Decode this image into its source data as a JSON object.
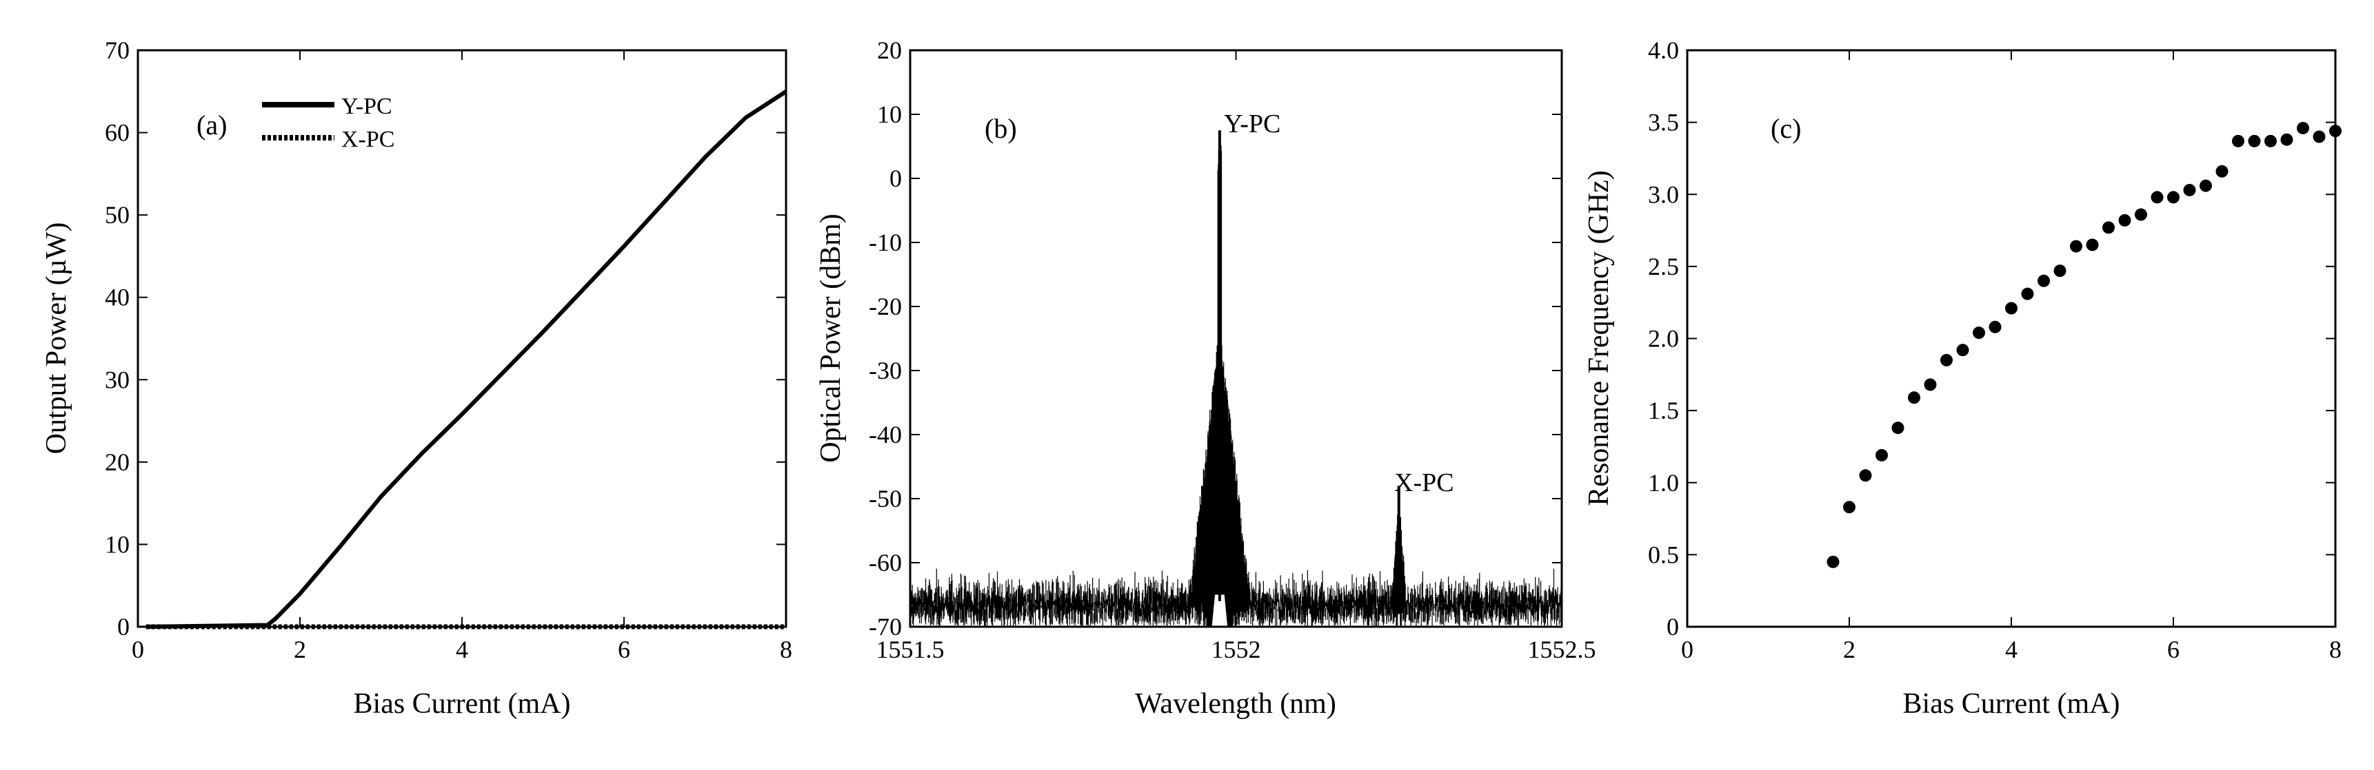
{
  "chart_data": [
    {
      "id": "a",
      "type": "line",
      "panel_label": "(a)",
      "xlabel": "Bias Current (mA)",
      "ylabel": "Output Power (µW)",
      "xlim": [
        0,
        8
      ],
      "ylim": [
        0,
        70
      ],
      "xticks": [
        0,
        2,
        4,
        6,
        8
      ],
      "yticks": [
        0,
        10,
        20,
        30,
        40,
        50,
        60,
        70
      ],
      "legend_position": "top-left",
      "series": [
        {
          "name": "Y-PC",
          "style": "solid",
          "x": [
            0.1,
            1.6,
            1.7,
            2.0,
            2.5,
            3.0,
            3.5,
            4.0,
            4.5,
            5.0,
            5.5,
            6.0,
            6.5,
            7.0,
            7.5,
            8.0
          ],
          "y": [
            0,
            0.2,
            1.0,
            4.0,
            9.8,
            15.8,
            21.0,
            25.8,
            30.8,
            35.8,
            41.0,
            46.2,
            51.6,
            57.0,
            61.8,
            65.0
          ]
        },
        {
          "name": "X-PC",
          "style": "dotted",
          "x": [
            0.1,
            8.0
          ],
          "y": [
            0,
            0
          ]
        }
      ]
    },
    {
      "id": "b",
      "type": "line",
      "panel_label": "(b)",
      "xlabel": "Wavelength (nm)",
      "ylabel": "Optical Power (dBm)",
      "xlim": [
        1551.5,
        1552.5
      ],
      "ylim": [
        -70,
        20
      ],
      "xticks": [
        1551.5,
        1552,
        1552.5
      ],
      "yticks": [
        -70,
        -60,
        -50,
        -40,
        -30,
        -20,
        -10,
        0,
        10,
        20
      ],
      "noise_floor_dbm": [
        -68,
        -61
      ],
      "peaks": [
        {
          "label": "Y-PC",
          "wavelength_nm": 1551.975,
          "power_dbm": 7.5
        },
        {
          "label": "X-PC",
          "wavelength_nm": 1552.25,
          "power_dbm": -48
        }
      ]
    },
    {
      "id": "c",
      "type": "scatter",
      "panel_label": "(c)",
      "xlabel": "Bias Current (mA)",
      "ylabel": "Resonance Frequency (GHz)",
      "xlim": [
        0,
        8
      ],
      "ylim": [
        0,
        4.0
      ],
      "xticks": [
        0,
        2,
        4,
        6,
        8
      ],
      "yticks": [
        0,
        0.5,
        1.0,
        1.5,
        2.0,
        2.5,
        3.0,
        3.5,
        4.0
      ],
      "ytick_labels": [
        "0",
        "0.5",
        "1.0",
        "1.5",
        "2.0",
        "2.5",
        "3.0",
        "3.5",
        "4.0"
      ],
      "x": [
        1.8,
        2.0,
        2.2,
        2.4,
        2.6,
        2.8,
        3.0,
        3.2,
        3.4,
        3.6,
        3.8,
        4.0,
        4.2,
        4.4,
        4.6,
        4.8,
        5.0,
        5.2,
        5.4,
        5.6,
        5.8,
        6.0,
        6.2,
        6.4,
        6.6,
        6.8,
        7.0,
        7.2,
        7.4,
        7.6,
        7.8,
        8.0
      ],
      "y": [
        0.45,
        0.83,
        1.05,
        1.19,
        1.38,
        1.59,
        1.68,
        1.85,
        1.92,
        2.04,
        2.08,
        2.21,
        2.31,
        2.4,
        2.47,
        2.64,
        2.65,
        2.77,
        2.82,
        2.86,
        2.98,
        2.98,
        3.03,
        3.06,
        3.16,
        3.37,
        3.37,
        3.37,
        3.38,
        3.46,
        3.4,
        3.44
      ]
    }
  ]
}
